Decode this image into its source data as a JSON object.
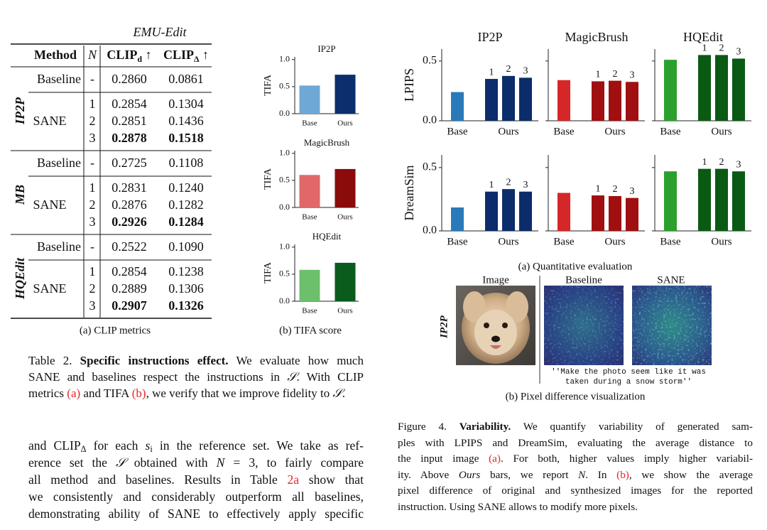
{
  "table": {
    "group_title": "EMU-Edit",
    "header": {
      "method": "Method",
      "n": "N",
      "clip_d": {
        "base": "CLIP",
        "sub": "d",
        "arrow": " ↑"
      },
      "clip_delta": {
        "base": "CLIP",
        "sub": "Δ",
        "arrow": " ↑"
      }
    },
    "groups": [
      {
        "name": "IP2P",
        "baseline": {
          "method": "Baseline",
          "n": "-",
          "clip_d": "0.2860",
          "clip_delta": "0.0861"
        },
        "sane": {
          "method": "SANE",
          "bold_row": 2,
          "rows": [
            {
              "n": "1",
              "clip_d": "0.2854",
              "clip_delta": "0.1304"
            },
            {
              "n": "2",
              "clip_d": "0.2851",
              "clip_delta": "0.1436"
            },
            {
              "n": "3",
              "clip_d": "0.2878",
              "clip_delta": "0.1518"
            }
          ]
        }
      },
      {
        "name": "MB",
        "baseline": {
          "method": "Baseline",
          "n": "-",
          "clip_d": "0.2725",
          "clip_delta": "0.1108"
        },
        "sane": {
          "method": "SANE",
          "bold_row": 2,
          "rows": [
            {
              "n": "1",
              "clip_d": "0.2831",
              "clip_delta": "0.1240"
            },
            {
              "n": "2",
              "clip_d": "0.2876",
              "clip_delta": "0.1282"
            },
            {
              "n": "3",
              "clip_d": "0.2926",
              "clip_delta": "0.1284"
            }
          ]
        }
      },
      {
        "name": "HQEdit",
        "baseline": {
          "method": "Baseline",
          "n": "-",
          "clip_d": "0.2522",
          "clip_delta": "0.1090"
        },
        "sane": {
          "method": "SANE",
          "bold_row": 2,
          "rows": [
            {
              "n": "1",
              "clip_d": "0.2854",
              "clip_delta": "0.1238"
            },
            {
              "n": "2",
              "clip_d": "0.2889",
              "clip_delta": "0.1306"
            },
            {
              "n": "3",
              "clip_d": "0.2907",
              "clip_delta": "0.1326"
            }
          ]
        }
      }
    ],
    "caption": "(a) CLIP metrics"
  },
  "tifa_caption": "(b) TIFA score",
  "chart_data": [
    {
      "type": "bar",
      "title": "IP2P",
      "ylabel": "TIFA",
      "categories": [
        "Base",
        "Ours"
      ],
      "values": [
        0.52,
        0.72
      ],
      "colors": [
        "#6fa8d6",
        "#0b2e6d"
      ],
      "ylim": [
        0,
        1.05
      ],
      "yticks": [
        {
          "value": 0,
          "label": "0.0"
        },
        {
          "value": 0.5,
          "label": "0.5"
        },
        {
          "value": 1,
          "label": "1.0"
        }
      ]
    },
    {
      "type": "bar",
      "title": "MagicBrush",
      "ylabel": "TIFA",
      "categories": [
        "Base",
        "Ours"
      ],
      "values": [
        0.6,
        0.71
      ],
      "colors": [
        "#e06868",
        "#8b0a0a"
      ],
      "ylim": [
        0,
        1.05
      ],
      "yticks": [
        {
          "value": 0,
          "label": "0.0"
        },
        {
          "value": 0.5,
          "label": "0.5"
        },
        {
          "value": 1,
          "label": "1.0"
        }
      ]
    },
    {
      "type": "bar",
      "title": "HQEdit",
      "ylabel": "TIFA",
      "categories": [
        "Base",
        "Ours"
      ],
      "values": [
        0.58,
        0.71
      ],
      "colors": [
        "#6cc06c",
        "#0a5c1c"
      ],
      "ylim": [
        0,
        1.05
      ],
      "yticks": [
        {
          "value": 0,
          "label": "0.0"
        },
        {
          "value": 0.5,
          "label": "0.5"
        },
        {
          "value": 1,
          "label": "1.0"
        }
      ]
    },
    {
      "type": "bar",
      "title": "IP2P",
      "ylabel": "LPIPS",
      "ylim": [
        0,
        0.6
      ],
      "yticks": [
        {
          "value": 0,
          "label": "0.0"
        },
        {
          "value": 0.5,
          "label": "0.5"
        }
      ],
      "series": [
        {
          "name": "Base",
          "color": "#2a7ab9",
          "values": [
            0.24
          ]
        },
        {
          "name": "Ours",
          "color": "#0c2d6b",
          "values": [
            0.35,
            0.375,
            0.36
          ],
          "n": [
            1,
            2,
            3
          ]
        }
      ]
    },
    {
      "type": "bar",
      "title": "MagicBrush",
      "ylim": [
        0,
        0.6
      ],
      "yticks": [
        0,
        0.5
      ],
      "series": [
        {
          "name": "Base",
          "color": "#d62728",
          "values": [
            0.34
          ]
        },
        {
          "name": "Ours",
          "color": "#a01010",
          "values": [
            0.33,
            0.335,
            0.325
          ],
          "n": [
            1,
            2,
            3
          ]
        }
      ]
    },
    {
      "type": "bar",
      "title": "HQEdit",
      "ylim": [
        0,
        0.6
      ],
      "yticks": [
        0,
        0.5
      ],
      "series": [
        {
          "name": "Base",
          "color": "#2ca02c",
          "values": [
            0.51
          ]
        },
        {
          "name": "Ours",
          "color": "#0a5a14",
          "values": [
            0.55,
            0.55,
            0.52
          ],
          "n": [
            1,
            2,
            3
          ]
        }
      ]
    },
    {
      "type": "bar",
      "ylabel": "DreamSim",
      "ylim": [
        0,
        0.6
      ],
      "yticks": [
        {
          "value": 0,
          "label": "0.0"
        },
        {
          "value": 0.5,
          "label": "0.5"
        }
      ],
      "series": [
        {
          "name": "Base",
          "color": "#2a7ab9",
          "values": [
            0.185
          ]
        },
        {
          "name": "Ours",
          "color": "#0c2d6b",
          "values": [
            0.31,
            0.33,
            0.31
          ],
          "n": [
            1,
            2,
            3
          ]
        }
      ]
    },
    {
      "type": "bar",
      "ylim": [
        0,
        0.6
      ],
      "yticks": [
        0,
        0.5
      ],
      "series": [
        {
          "name": "Base",
          "color": "#d62728",
          "values": [
            0.3
          ]
        },
        {
          "name": "Ours",
          "color": "#a01010",
          "values": [
            0.28,
            0.275,
            0.26
          ],
          "n": [
            1,
            2,
            3
          ]
        }
      ]
    },
    {
      "type": "bar",
      "ylim": [
        0,
        0.6
      ],
      "yticks": [
        0,
        0.5
      ],
      "series": [
        {
          "name": "Base",
          "color": "#2ca02c",
          "values": [
            0.47
          ]
        },
        {
          "name": "Ours",
          "color": "#0a5a14",
          "values": [
            0.49,
            0.49,
            0.47
          ],
          "n": [
            1,
            2,
            3
          ]
        }
      ]
    }
  ],
  "figure4": {
    "subcaption_a": "(a) Quantitative evaluation",
    "image_labels": [
      "Image",
      "Baseline",
      "SANE"
    ],
    "row_label": "IP2P",
    "instruction": [
      "''Make the photo seem like it was",
      "taken during a snow storm''"
    ],
    "subcaption_b": "(b) Pixel difference visualization"
  },
  "table_caption": [
    [
      "Table 2. ",
      {
        "b": "Specific instructions effect."
      },
      " We evaluate how much"
    ],
    [
      "SANE and baselines respect the instructions in ",
      {
        "i": "𝒮"
      },
      ". With CLIP"
    ],
    [
      "metrics ",
      {
        "ref": "(a)"
      },
      " and TIFA ",
      {
        "ref": "(b)"
      },
      ", we verify that we improve fidelity to ",
      {
        "i": "𝒮"
      },
      "."
    ]
  ],
  "body_text": [
    [
      "and CLIP",
      {
        "sub": "Δ"
      },
      " for each ",
      {
        "i": "s"
      },
      {
        "sub": "i"
      },
      " in the reference set. We take as ref-"
    ],
    [
      "erence set the ",
      {
        "i": "𝒮"
      },
      " obtained with ",
      {
        "i": "N"
      },
      " = 3, to fairly compare"
    ],
    [
      "all method and baselines. Results in Table ",
      {
        "ref": "2a"
      },
      " show that"
    ],
    [
      "we consistently and considerably outperform all baselines,"
    ],
    [
      "demonstrating ability of SANE to effectively apply specific"
    ]
  ],
  "figure4_caption": [
    [
      "Figure 4. ",
      {
        "b": "Variability."
      },
      " We quantify variability of generated sam-"
    ],
    [
      "ples with LPIPS and DreamSim, evaluating the average distance to"
    ],
    [
      "the input image ",
      {
        "ref": "(a)"
      },
      ". For both, higher values imply higher variabil-"
    ],
    [
      "ity. Above ",
      {
        "i": "Ours"
      },
      " bars, we report ",
      {
        "i": "N"
      },
      ". In ",
      {
        "ref": "(b)"
      },
      ", we show the average"
    ],
    [
      "pixel difference of original and synthesized images for the reported"
    ],
    [
      "instruction. Using SANE allows to modify more pixels."
    ]
  ]
}
